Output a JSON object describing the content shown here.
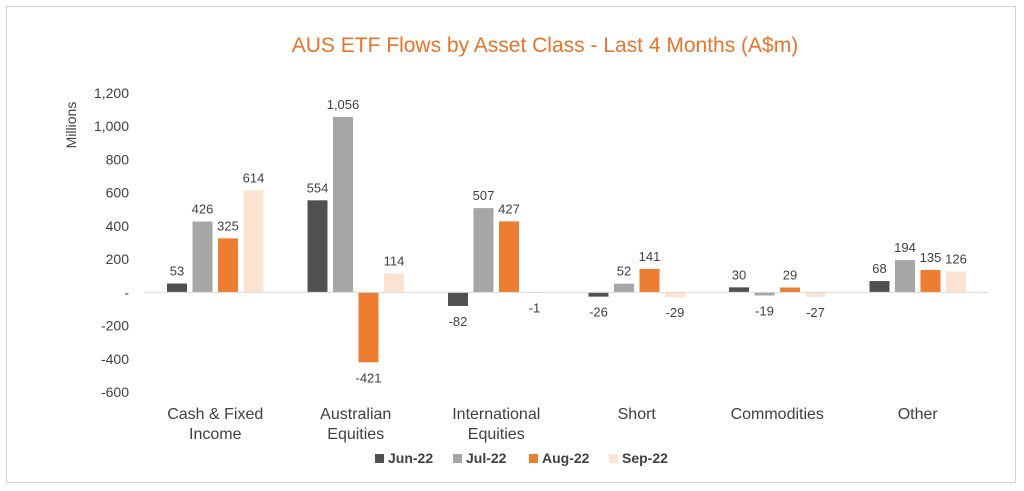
{
  "chart_data": {
    "type": "bar",
    "title": "AUS ETF Flows by Asset Class - Last 4 Months (A$m)",
    "ylabel": "Millions",
    "xlabel": "",
    "ylim": [
      -600,
      1200
    ],
    "yticks": [
      1200,
      1000,
      800,
      600,
      400,
      200,
      0,
      -200,
      -400,
      -600
    ],
    "ytick_labels": [
      "1,200",
      "1,000",
      "800",
      "600",
      "400",
      "200",
      "-",
      "-200",
      "-400",
      "-600"
    ],
    "categories": [
      [
        "Cash & Fixed",
        "Income"
      ],
      [
        "Australian",
        "Equities"
      ],
      [
        "International",
        "Equities"
      ],
      [
        "Short"
      ],
      [
        "Commodities"
      ],
      [
        "Other"
      ]
    ],
    "series": [
      {
        "name": "Jun-22",
        "color": "#505050",
        "values": [
          53,
          554,
          -82,
          -26,
          30,
          68
        ],
        "labels": [
          "53",
          "554",
          "-82",
          "-26",
          "30",
          "68"
        ]
      },
      {
        "name": "Jul-22",
        "color": "#a6a6a6",
        "values": [
          426,
          1056,
          507,
          52,
          -19,
          194
        ],
        "labels": [
          "426",
          "1,056",
          "507",
          "52",
          "-19",
          "194"
        ]
      },
      {
        "name": "Aug-22",
        "color": "#ed7d31",
        "values": [
          325,
          -421,
          427,
          141,
          29,
          135
        ],
        "labels": [
          "325",
          "-421",
          "427",
          "141",
          "29",
          "135"
        ]
      },
      {
        "name": "Sep-22",
        "color": "#fbe3d4",
        "values": [
          614,
          114,
          -1,
          -29,
          -27,
          126
        ],
        "labels": [
          "614",
          "114",
          "-1",
          "-29",
          "-27",
          "126"
        ]
      }
    ],
    "grid": false,
    "legend_position": "bottom"
  }
}
